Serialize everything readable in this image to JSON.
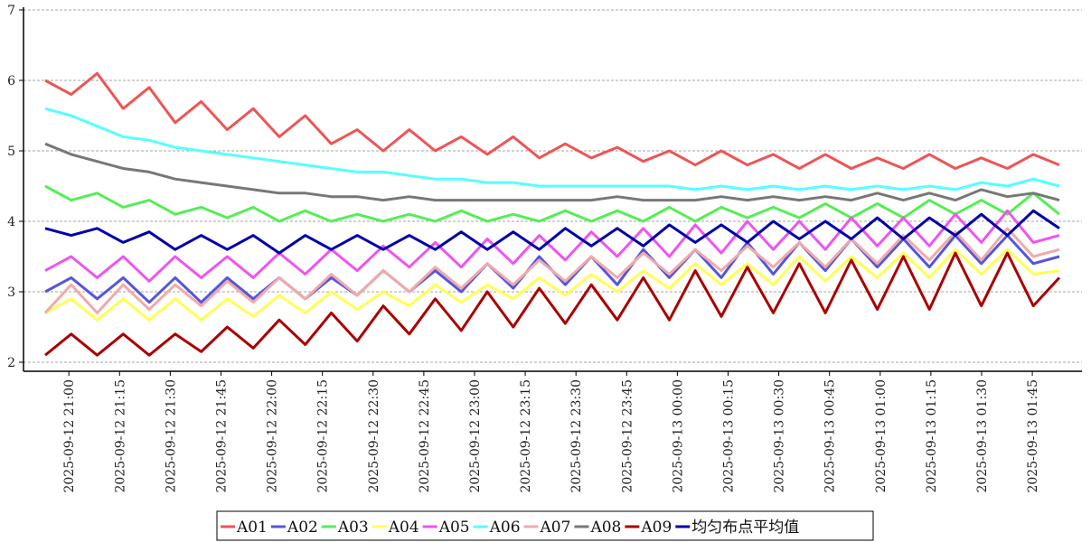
{
  "chart_data": {
    "type": "line",
    "title": "",
    "xlabel": "",
    "ylabel": "",
    "ylim": [
      2,
      7
    ],
    "yticks": [
      2,
      3,
      4,
      5,
      6,
      7
    ],
    "grid": "horizontal-dashed",
    "legend_position": "bottom-center",
    "x_tick_labels": [
      "2025-09-12  21:00",
      "2025-09-12  21:15",
      "2025-09-12  21:30",
      "2025-09-12  21:45",
      "2025-09-12  22:00",
      "2025-09-12  22:15",
      "2025-09-12  22:30",
      "2025-09-12  22:45",
      "2025-09-12  23:00",
      "2025-09-12  23:15",
      "2025-09-12  23:30",
      "2025-09-12  23:45",
      "2025-09-13  00:00",
      "2025-09-13  00:15",
      "2025-09-13  00:30",
      "2025-09-13  00:45",
      "2025-09-13  01:00",
      "2025-09-13  01:15",
      "2025-09-13  01:30",
      "2025-09-13  01:45"
    ],
    "x_start": "2025-09-12 20:53",
    "x_end": "2025-09-13 01:53",
    "series": [
      {
        "name": "A01",
        "color": "#ee5555",
        "values": [
          6.0,
          5.8,
          6.1,
          5.6,
          5.9,
          5.4,
          5.7,
          5.3,
          5.6,
          5.2,
          5.5,
          5.1,
          5.3,
          5.0,
          5.3,
          5.0,
          5.2,
          4.95,
          5.2,
          4.9,
          5.1,
          4.9,
          5.05,
          4.85,
          5.0,
          4.8,
          5.0,
          4.8,
          4.95,
          4.75,
          4.95,
          4.75,
          4.9,
          4.75,
          4.95,
          4.75,
          4.9,
          4.75,
          4.95,
          4.8
        ]
      },
      {
        "name": "A02",
        "color": "#5555dd",
        "values": [
          3.0,
          3.2,
          2.9,
          3.2,
          2.85,
          3.2,
          2.85,
          3.2,
          2.9,
          3.2,
          2.9,
          3.2,
          2.95,
          3.3,
          3.0,
          3.3,
          3.0,
          3.4,
          3.05,
          3.5,
          3.1,
          3.5,
          3.1,
          3.6,
          3.2,
          3.6,
          3.2,
          3.7,
          3.25,
          3.7,
          3.3,
          3.75,
          3.35,
          3.75,
          3.35,
          3.8,
          3.4,
          3.8,
          3.4,
          3.5
        ]
      },
      {
        "name": "A03",
        "color": "#55ee55",
        "values": [
          4.5,
          4.3,
          4.4,
          4.2,
          4.3,
          4.1,
          4.2,
          4.05,
          4.2,
          4.0,
          4.15,
          4.0,
          4.1,
          4.0,
          4.1,
          4.0,
          4.15,
          4.0,
          4.1,
          4.0,
          4.15,
          4.0,
          4.15,
          4.0,
          4.2,
          4.0,
          4.2,
          4.05,
          4.2,
          4.05,
          4.25,
          4.05,
          4.25,
          4.05,
          4.3,
          4.1,
          4.3,
          4.1,
          4.4,
          4.1
        ]
      },
      {
        "name": "A04",
        "color": "#ffff55",
        "values": [
          2.7,
          2.9,
          2.6,
          2.9,
          2.6,
          2.9,
          2.6,
          2.9,
          2.65,
          2.95,
          2.7,
          3.0,
          2.75,
          3.0,
          2.8,
          3.1,
          2.85,
          3.1,
          2.9,
          3.2,
          2.95,
          3.25,
          3.0,
          3.3,
          3.05,
          3.4,
          3.1,
          3.4,
          3.1,
          3.5,
          3.15,
          3.5,
          3.2,
          3.55,
          3.2,
          3.6,
          3.25,
          3.6,
          3.25,
          3.3
        ]
      },
      {
        "name": "A05",
        "color": "#ee55ee",
        "values": [
          3.3,
          3.5,
          3.2,
          3.5,
          3.15,
          3.5,
          3.2,
          3.5,
          3.2,
          3.55,
          3.25,
          3.6,
          3.3,
          3.65,
          3.35,
          3.7,
          3.35,
          3.75,
          3.4,
          3.8,
          3.45,
          3.85,
          3.5,
          3.9,
          3.5,
          3.95,
          3.55,
          4.0,
          3.6,
          4.0,
          3.6,
          4.05,
          3.65,
          4.05,
          3.65,
          4.1,
          3.7,
          4.15,
          3.7,
          3.8
        ]
      },
      {
        "name": "A06",
        "color": "#55ffff",
        "values": [
          5.6,
          5.5,
          5.35,
          5.2,
          5.15,
          5.05,
          5.0,
          4.95,
          4.9,
          4.85,
          4.8,
          4.75,
          4.7,
          4.7,
          4.65,
          4.6,
          4.6,
          4.55,
          4.55,
          4.5,
          4.5,
          4.5,
          4.5,
          4.5,
          4.5,
          4.45,
          4.5,
          4.45,
          4.5,
          4.45,
          4.5,
          4.45,
          4.5,
          4.45,
          4.5,
          4.45,
          4.55,
          4.5,
          4.6,
          4.5
        ]
      },
      {
        "name": "A07",
        "color": "#f0aaaa",
        "values": [
          2.7,
          3.1,
          2.7,
          3.1,
          2.75,
          3.1,
          2.8,
          3.15,
          2.85,
          3.2,
          2.9,
          3.25,
          2.95,
          3.3,
          3.0,
          3.35,
          3.05,
          3.4,
          3.1,
          3.45,
          3.15,
          3.5,
          3.2,
          3.55,
          3.25,
          3.6,
          3.3,
          3.65,
          3.35,
          3.7,
          3.35,
          3.75,
          3.4,
          3.8,
          3.45,
          3.85,
          3.45,
          3.9,
          3.5,
          3.6
        ]
      },
      {
        "name": "A08",
        "color": "#777777",
        "values": [
          5.1,
          4.95,
          4.85,
          4.75,
          4.7,
          4.6,
          4.55,
          4.5,
          4.45,
          4.4,
          4.4,
          4.35,
          4.35,
          4.3,
          4.35,
          4.3,
          4.3,
          4.3,
          4.3,
          4.3,
          4.3,
          4.3,
          4.35,
          4.3,
          4.3,
          4.3,
          4.35,
          4.3,
          4.35,
          4.3,
          4.35,
          4.3,
          4.4,
          4.3,
          4.4,
          4.3,
          4.45,
          4.35,
          4.4,
          4.3
        ]
      },
      {
        "name": "A09",
        "color": "#aa0000",
        "values": [
          2.1,
          2.4,
          2.1,
          2.4,
          2.1,
          2.4,
          2.15,
          2.5,
          2.2,
          2.6,
          2.25,
          2.7,
          2.3,
          2.8,
          2.4,
          2.9,
          2.45,
          3.0,
          2.5,
          3.05,
          2.55,
          3.1,
          2.6,
          3.2,
          2.6,
          3.3,
          2.65,
          3.35,
          2.7,
          3.4,
          2.7,
          3.45,
          2.75,
          3.5,
          2.75,
          3.55,
          2.8,
          3.55,
          2.8,
          3.2
        ]
      },
      {
        "name": "均匀布点平均值",
        "color": "#0000aa",
        "values": [
          3.9,
          3.8,
          3.9,
          3.7,
          3.85,
          3.6,
          3.8,
          3.6,
          3.8,
          3.55,
          3.8,
          3.6,
          3.8,
          3.6,
          3.8,
          3.6,
          3.85,
          3.6,
          3.85,
          3.6,
          3.9,
          3.65,
          3.9,
          3.65,
          3.95,
          3.7,
          3.95,
          3.7,
          4.0,
          3.75,
          4.0,
          3.75,
          4.05,
          3.75,
          4.05,
          3.8,
          4.1,
          3.8,
          4.15,
          3.9
        ]
      }
    ]
  }
}
